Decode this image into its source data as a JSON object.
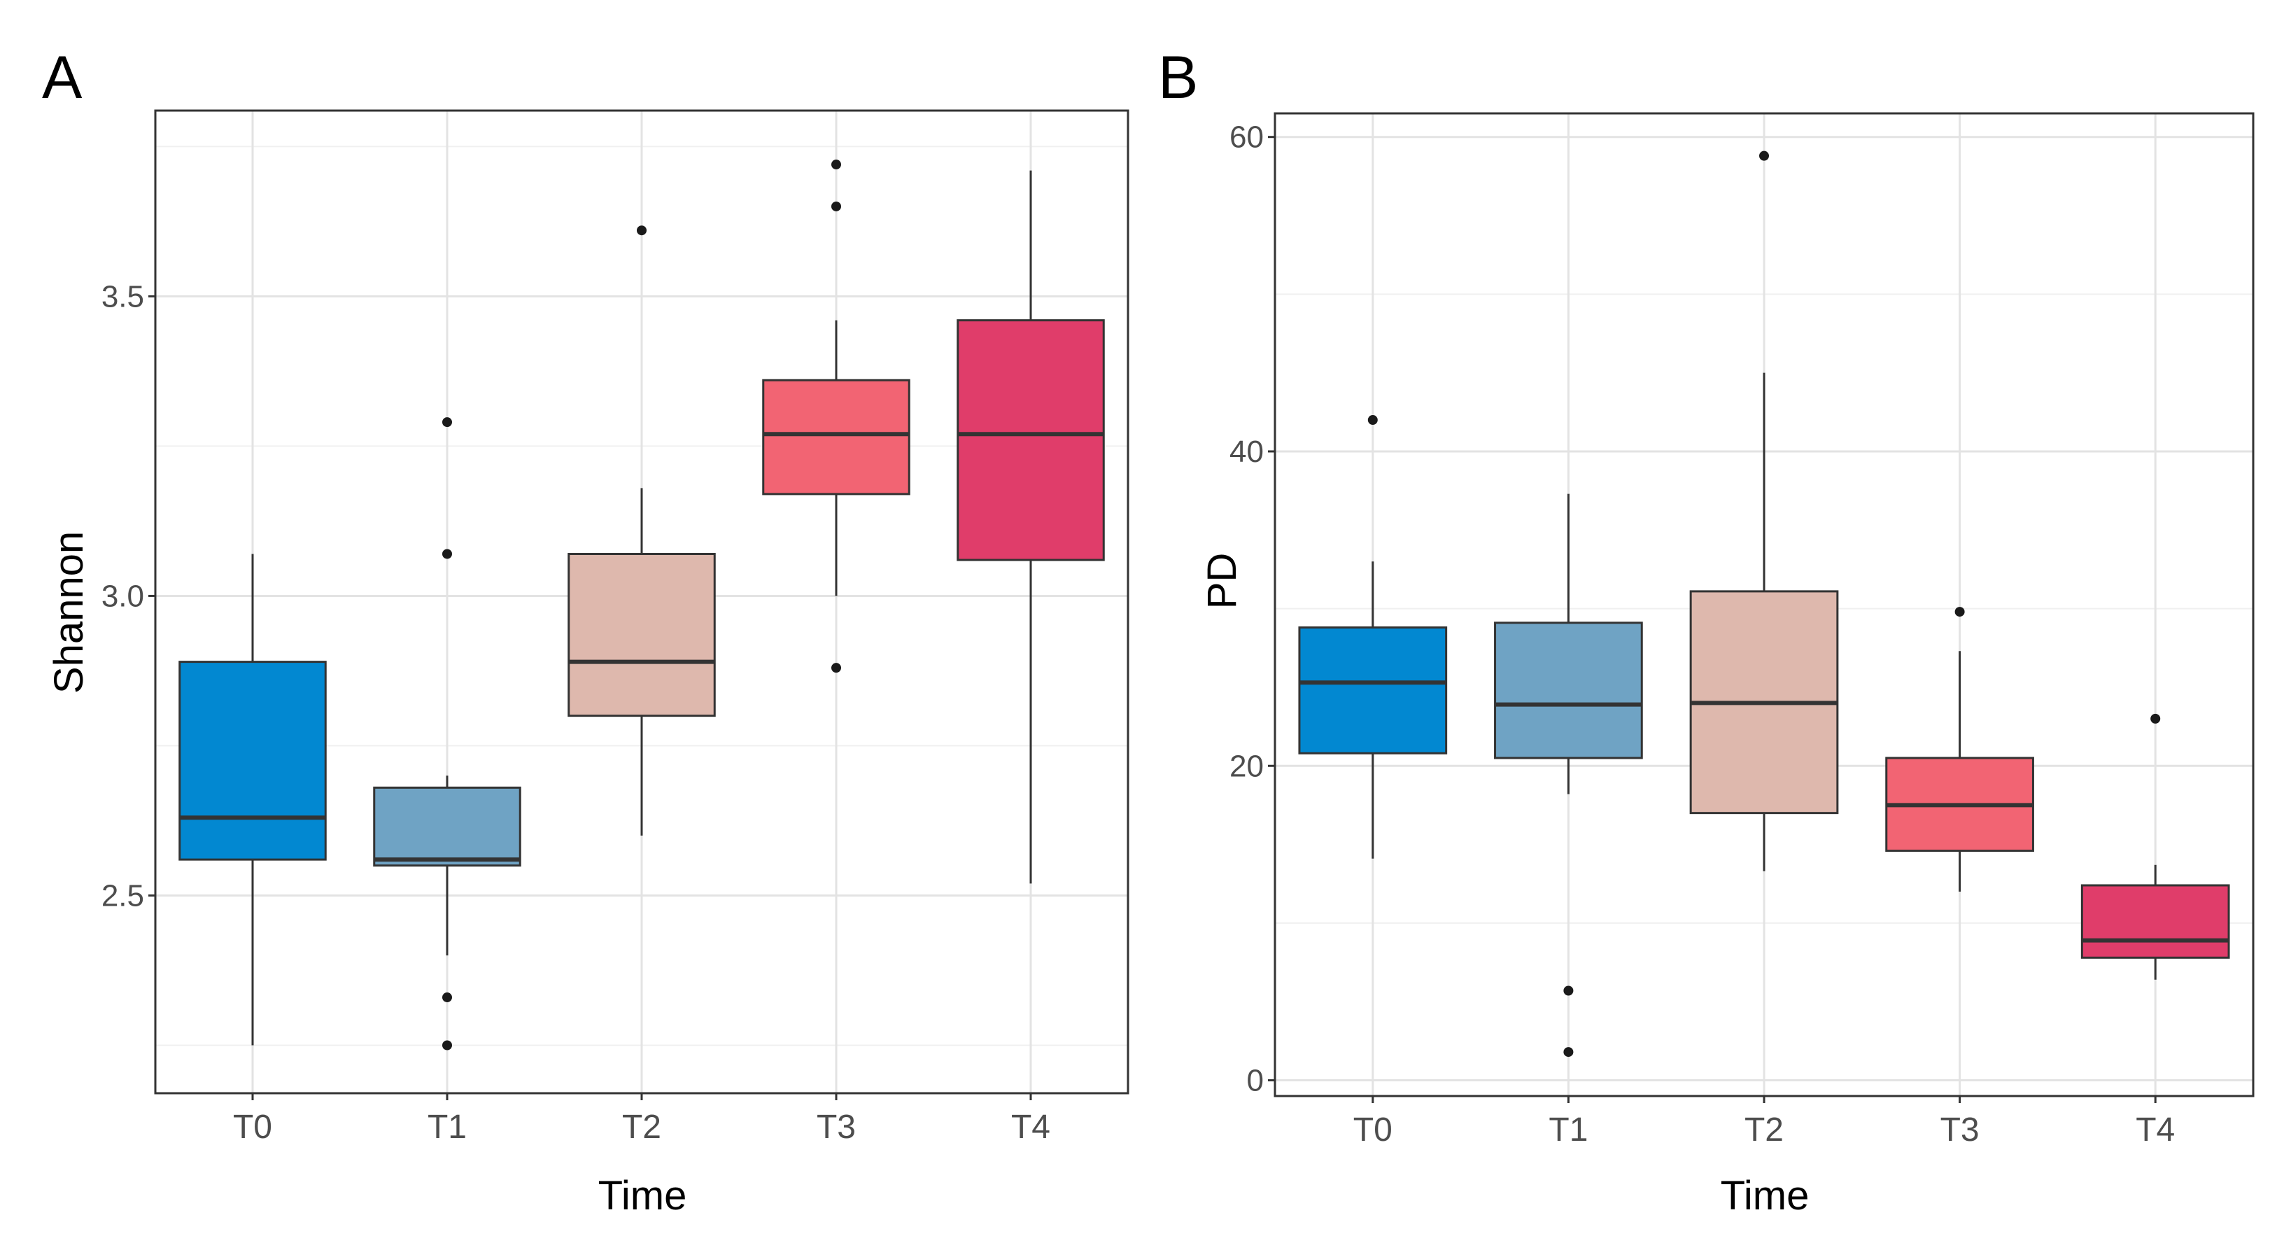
{
  "chart_data": [
    {
      "type": "box",
      "panel_label": "A",
      "xlabel": "Time",
      "ylabel": "Shannon",
      "categories": [
        "T0",
        "T1",
        "T2",
        "T3",
        "T4"
      ],
      "ylim": [
        2.17,
        3.81
      ],
      "yticks": [
        2.5,
        3.0,
        3.5
      ],
      "ytick_labels": [
        "2.5",
        "3.0",
        "3.5"
      ],
      "grid": true,
      "boxes": [
        {
          "category": "T0",
          "q1": 2.56,
          "median": 2.63,
          "q3": 2.89,
          "whisker_low": 2.25,
          "whisker_high": 3.07,
          "outliers": [],
          "color": "#0288d1"
        },
        {
          "category": "T1",
          "q1": 2.55,
          "median": 2.56,
          "q3": 2.68,
          "whisker_low": 2.4,
          "whisker_high": 2.7,
          "outliers": [
            3.29,
            3.07,
            2.33,
            2.25
          ],
          "color": "#6fa3c4"
        },
        {
          "category": "T2",
          "q1": 2.8,
          "median": 2.89,
          "q3": 3.07,
          "whisker_low": 2.6,
          "whisker_high": 3.18,
          "outliers": [
            3.61
          ],
          "color": "#deb8ad"
        },
        {
          "category": "T3",
          "q1": 3.17,
          "median": 3.27,
          "q3": 3.36,
          "whisker_low": 3.0,
          "whisker_high": 3.46,
          "outliers": [
            3.72,
            3.65,
            2.88
          ],
          "color": "#f26473"
        },
        {
          "category": "T4",
          "q1": 3.06,
          "median": 3.27,
          "q3": 3.46,
          "whisker_low": 2.52,
          "whisker_high": 3.71,
          "outliers": [],
          "color": "#e03d6a"
        }
      ]
    },
    {
      "type": "box",
      "panel_label": "B",
      "xlabel": "Time",
      "ylabel": "PD",
      "categories": [
        "T0",
        "T1",
        "T2",
        "T3",
        "T4"
      ],
      "ylim": [
        -1.0,
        61.5
      ],
      "yticks": [
        0,
        20,
        40,
        60
      ],
      "ytick_labels": [
        "0",
        "20",
        "40",
        "60"
      ],
      "grid": true,
      "boxes": [
        {
          "category": "T0",
          "q1": 20.8,
          "median": 25.3,
          "q3": 28.8,
          "whisker_low": 14.1,
          "whisker_high": 33.0,
          "outliers": [
            42.0
          ],
          "color": "#0288d1"
        },
        {
          "category": "T1",
          "q1": 20.5,
          "median": 23.9,
          "q3": 29.1,
          "whisker_low": 18.2,
          "whisker_high": 37.3,
          "outliers": [
            5.7,
            1.8
          ],
          "color": "#6fa3c4"
        },
        {
          "category": "T2",
          "q1": 17.0,
          "median": 24.0,
          "q3": 31.1,
          "whisker_low": 13.3,
          "whisker_high": 45.0,
          "outliers": [
            58.8
          ],
          "color": "#deb8ad"
        },
        {
          "category": "T3",
          "q1": 14.6,
          "median": 17.5,
          "q3": 20.5,
          "whisker_low": 12.0,
          "whisker_high": 27.3,
          "outliers": [
            29.8
          ],
          "color": "#f26473"
        },
        {
          "category": "T4",
          "q1": 7.8,
          "median": 8.9,
          "q3": 12.4,
          "whisker_low": 6.4,
          "whisker_high": 13.7,
          "outliers": [
            23.0
          ],
          "color": "#e03d6a"
        }
      ]
    }
  ]
}
